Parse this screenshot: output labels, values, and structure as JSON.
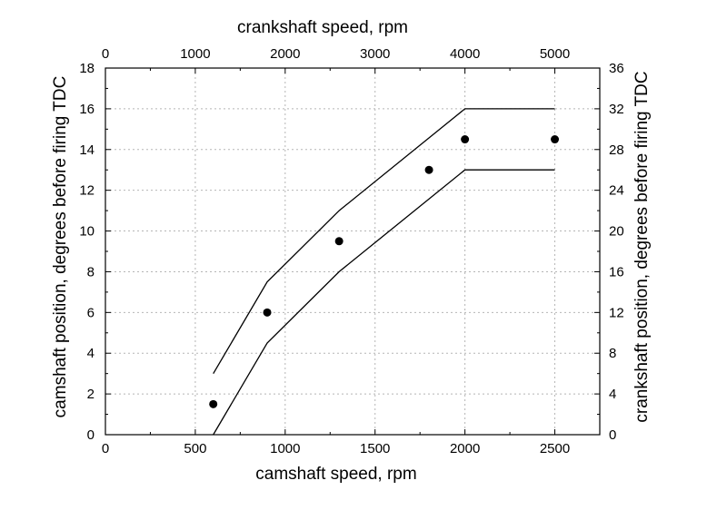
{
  "chart_data": {
    "type": "line",
    "title": "",
    "grid": true,
    "x_bottom": {
      "label": "camshaft speed, rpm",
      "range": [
        0,
        2750
      ],
      "ticks": [
        0,
        500,
        1000,
        1500,
        2000,
        2500
      ],
      "tick_labels": [
        "0",
        "500",
        "1000",
        "1500",
        "2000",
        "2500"
      ]
    },
    "x_top": {
      "label": "crankshaft speed, rpm",
      "range": [
        0,
        5500
      ],
      "ticks": [
        0,
        1000,
        2000,
        3000,
        4000,
        5000
      ],
      "tick_labels": [
        "0",
        "1000",
        "2000",
        "3000",
        "4000",
        "5000"
      ]
    },
    "y_left": {
      "label": "camshaft position, degrees before firing TDC",
      "range": [
        0,
        18
      ],
      "ticks": [
        0,
        2,
        4,
        6,
        8,
        10,
        12,
        14,
        16,
        18
      ],
      "tick_labels": [
        "0",
        "2",
        "4",
        "6",
        "8",
        "10",
        "12",
        "14",
        "16",
        "18"
      ]
    },
    "y_right": {
      "label": "crankshaft position, degrees before firing TDC",
      "range": [
        0,
        36
      ],
      "ticks": [
        0,
        4,
        8,
        12,
        16,
        20,
        24,
        28,
        32,
        36
      ],
      "tick_labels": [
        "0",
        "4",
        "8",
        "12",
        "16",
        "20",
        "24",
        "28",
        "32",
        "36"
      ]
    },
    "series": [
      {
        "kind": "line",
        "x": [
          600,
          900,
          1300,
          2000,
          2500
        ],
        "y": [
          3,
          7.5,
          11,
          16,
          16
        ]
      },
      {
        "kind": "line",
        "x": [
          600,
          900,
          1300,
          2000,
          2500
        ],
        "y": [
          0,
          4.5,
          8,
          13,
          13
        ]
      },
      {
        "kind": "scatter",
        "x": [
          600,
          900,
          1300,
          1800,
          2000,
          2500
        ],
        "y": [
          1.5,
          6,
          9.5,
          13,
          14.5,
          14.5
        ]
      }
    ]
  }
}
